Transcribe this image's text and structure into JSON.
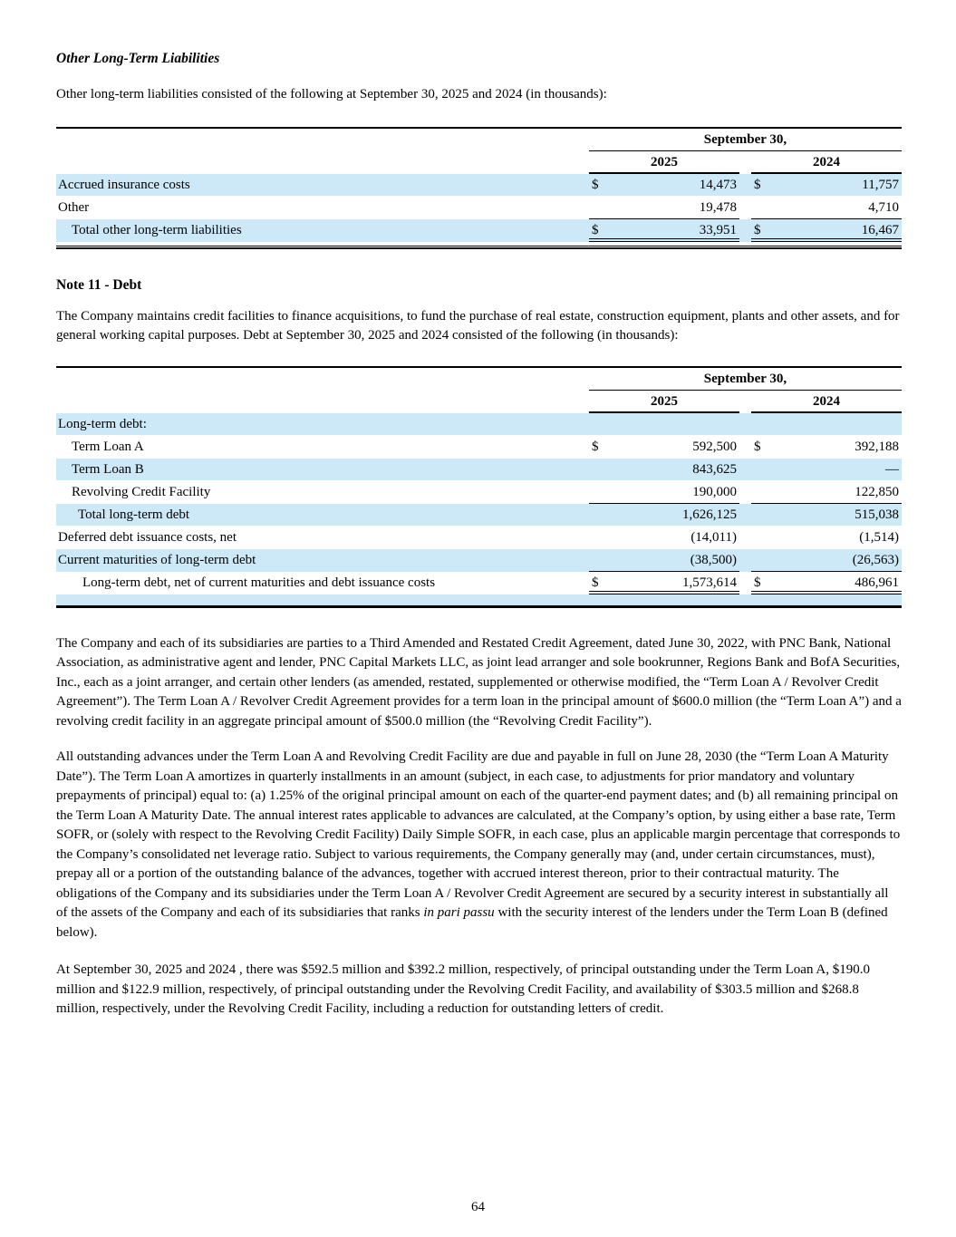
{
  "document": {
    "page_number": "64"
  },
  "colors": {
    "highlight": "#cde9f8",
    "rule": "#000000"
  },
  "section_other_liabilities": {
    "heading": "Other Long-Term Liabilities",
    "intro": "Other long-term liabilities consisted of the following at September 30, 2025 and 2024 (in thousands):",
    "table": {
      "group_header": "September 30,",
      "col_2025": "2025",
      "col_2024": "2024",
      "rows": [
        {
          "label": "Accrued insurance costs",
          "cur1": "$",
          "val1": "14,473",
          "cur2": "$",
          "val2": "11,757"
        },
        {
          "label": "Other",
          "cur1": "",
          "val1": "19,478",
          "cur2": "",
          "val2": "4,710"
        },
        {
          "label": "Total other long-term liabilities",
          "cur1": "$",
          "val1": "33,951",
          "cur2": "$",
          "val2": "16,467"
        }
      ]
    }
  },
  "section_debt": {
    "heading": "Note 11 - Debt",
    "intro": "The Company maintains credit facilities to finance acquisitions, to fund the purchase of real estate, construction equipment, plants and other assets, and for general working capital purposes. Debt at September 30, 2025 and 2024 consisted of the following (in thousands):",
    "table": {
      "group_header": "September 30,",
      "col_2025": "2025",
      "col_2024": "2024",
      "rows": [
        {
          "label": "Long-term debt:",
          "cur1": "",
          "val1": "",
          "cur2": "",
          "val2": ""
        },
        {
          "label": "Term Loan A",
          "cur1": "$",
          "val1": "592,500",
          "cur2": "$",
          "val2": "392,188"
        },
        {
          "label": "Term Loan B",
          "cur1": "",
          "val1": "843,625",
          "cur2": "",
          "val2": "—"
        },
        {
          "label": "Revolving Credit Facility",
          "cur1": "",
          "val1": "190,000",
          "cur2": "",
          "val2": "122,850"
        },
        {
          "label": "Total long-term debt",
          "cur1": "",
          "val1": "1,626,125",
          "cur2": "",
          "val2": "515,038"
        },
        {
          "label": "Deferred debt issuance costs, net",
          "cur1": "",
          "val1": "(14,011)",
          "cur2": "",
          "val2": "(1,514)"
        },
        {
          "label": "Current maturities of long-term debt",
          "cur1": "",
          "val1": "(38,500)",
          "cur2": "",
          "val2": "(26,563)"
        },
        {
          "label": "Long-term debt, net of current maturities and debt issuance costs",
          "cur1": "$",
          "val1": "1,573,614",
          "cur2": "$",
          "val2": "486,961"
        }
      ]
    }
  },
  "paragraphs": {
    "credit_agreement": "The Company and each of its subsidiaries are parties to a Third Amended and Restated Credit Agreement, dated June 30, 2022, with PNC Bank, National Association, as administrative agent and lender, PNC Capital Markets LLC, as joint lead arranger and sole bookrunner, Regions Bank and BofA Securities, Inc., each as a joint arranger, and certain other lenders (as amended, restated, supplemented or otherwise modified, the “Term Loan A / Revolver Credit Agreement”). The Term Loan A / Revolver Credit Agreement provides for a term loan in the principal amount of $600.0 million (the “Term Loan A”) and a revolving credit facility in an aggregate principal amount of $500.0 million (the “Revolving Credit Facility”).",
    "terms_before_italic": "All outstanding advances under the Term Loan A and Revolving Credit Facility are due and payable in full on June 28, 2030 (the “Term Loan A Maturity Date”). The Term Loan A amortizes in quarterly installments in an amount (subject, in each case, to adjustments for prior mandatory and voluntary prepayments of principal) equal to: (a) 1.25% of the original principal amount on each of the quarter-end payment dates; and (b) all remaining principal on the Term Loan A Maturity Date. The annual interest rates applicable to advances are calculated, at the Company’s option, by using either a base rate, Term SOFR, or (solely with respect to the Revolving Credit Facility) Daily Simple SOFR, in each case, plus an applicable margin percentage that corresponds to the Company’s consolidated net leverage ratio. Subject to various requirements, the Company generally may (and, under certain circumstances, must), prepay all or a portion of the outstanding balance of the advances, together with accrued interest thereon, prior to their contractual maturity. The obligations of the Company and its subsidiaries under the Term Loan A / Revolver Credit Agreement are secured by a security interest in substantially all of the assets of the Company and each of its subsidiaries that ranks ",
    "terms_italic": "in pari passu",
    "terms_after_italic": " with the security interest of the lenders under the Term Loan B (defined below).",
    "outstanding": "At September 30, 2025 and 2024 , there was $592.5 million and $392.2 million, respectively, of principal outstanding under the Term Loan A, $190.0 million and $122.9 million, respectively, of principal outstanding under the Revolving Credit Facility, and availability of $303.5 million and $268.8 million, respectively, under the Revolving Credit Facility, including a reduction for outstanding letters of credit."
  }
}
